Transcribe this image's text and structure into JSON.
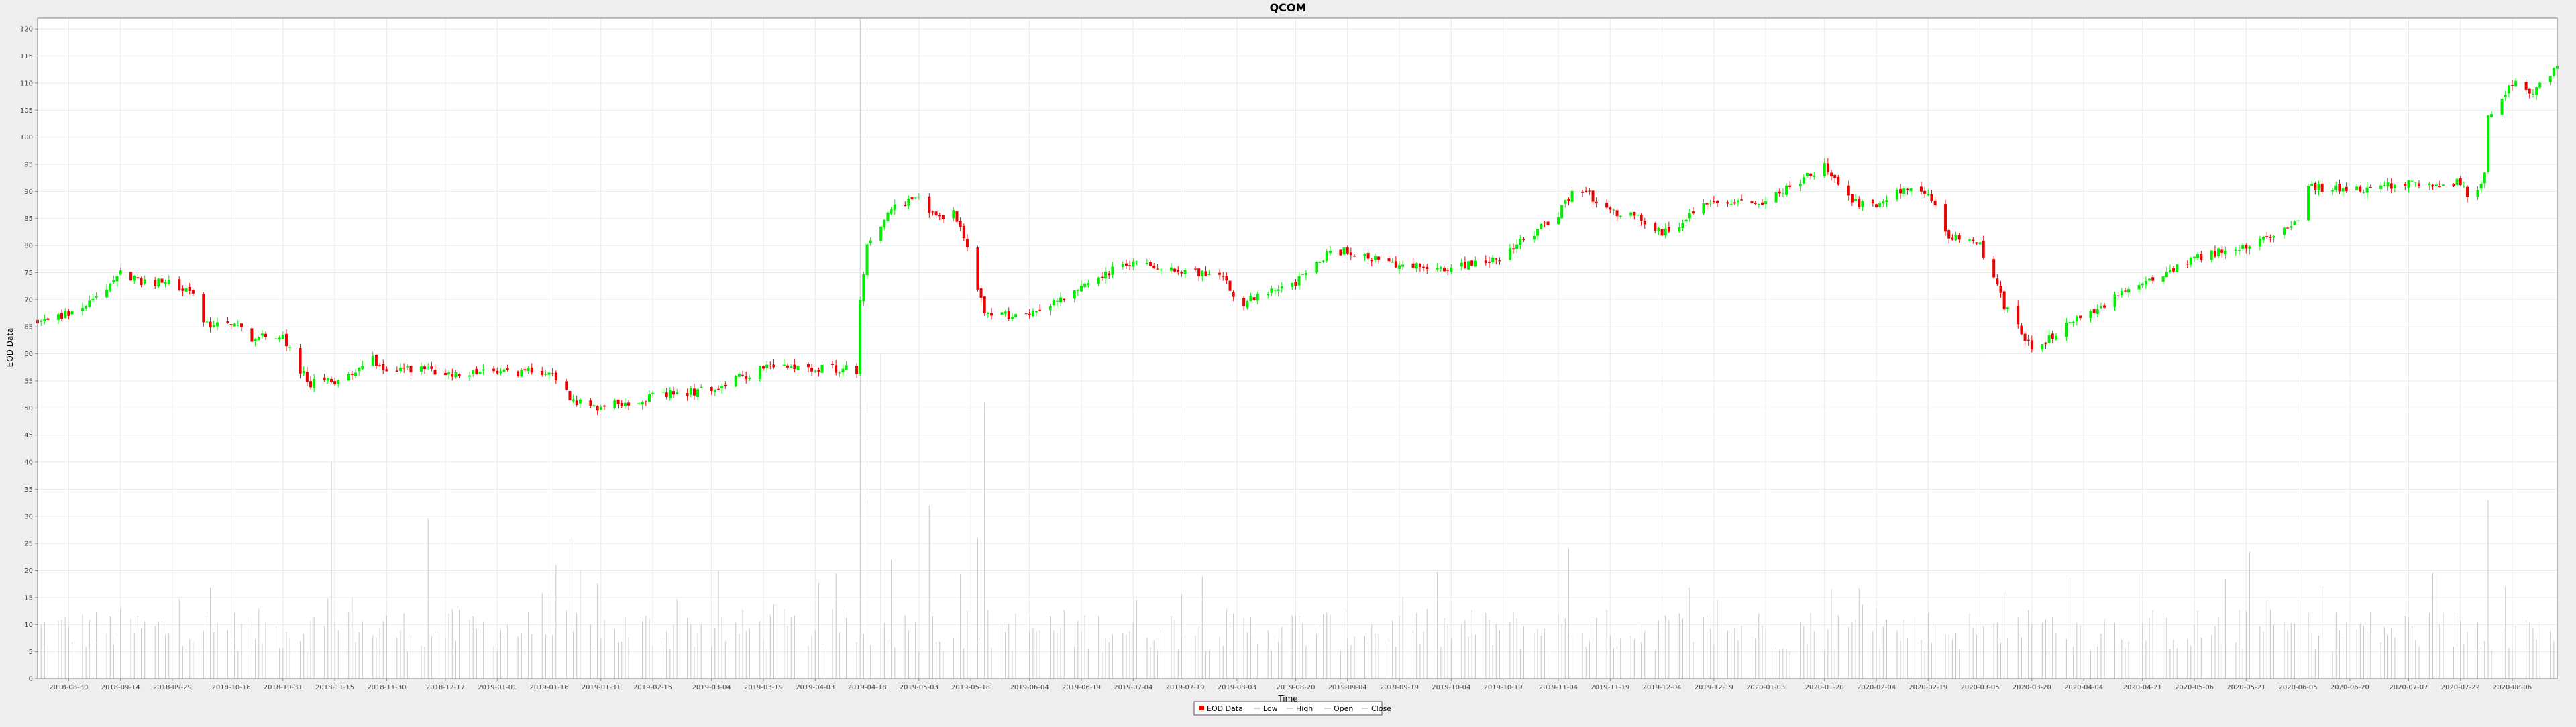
{
  "chart_data": {
    "type": "candlestick",
    "title": "QCOM",
    "xlabel": "Time",
    "ylabel": "EOD Data",
    "ylim": [
      0,
      122
    ],
    "y_ticks": [
      0,
      5,
      10,
      15,
      20,
      25,
      30,
      35,
      40,
      45,
      50,
      55,
      60,
      65,
      70,
      75,
      80,
      85,
      90,
      95,
      100,
      105,
      110,
      115,
      120
    ],
    "x_range": [
      "2018-08-21",
      "2020-08-19"
    ],
    "x_ticks": [
      "2018-08-30",
      "2018-09-14",
      "2018-09-29",
      "2018-10-16",
      "2018-10-31",
      "2018-11-15",
      "2018-11-30",
      "2018-12-17",
      "2019-01-01",
      "2019-01-16",
      "2019-01-31",
      "2019-02-15",
      "2019-03-04",
      "2019-03-19",
      "2019-04-03",
      "2019-04-18",
      "2019-05-03",
      "2019-05-18",
      "2019-06-04",
      "2019-06-19",
      "2019-07-04",
      "2019-07-19",
      "2019-08-03",
      "2019-08-20",
      "2019-09-04",
      "2019-09-19",
      "2019-10-04",
      "2019-10-19",
      "2019-11-04",
      "2019-11-19",
      "2019-12-04",
      "2019-12-19",
      "2020-01-03",
      "2020-01-20",
      "2020-02-04",
      "2020-02-19",
      "2020-03-05",
      "2020-03-20",
      "2020-04-04",
      "2020-04-21",
      "2020-05-06",
      "2020-05-21",
      "2020-06-05",
      "2020-06-20",
      "2020-07-07",
      "2020-07-22",
      "2020-08-06"
    ],
    "grid": true,
    "legend_position": "bottom-center",
    "legend": [
      "EOD Data",
      "Low",
      "High",
      "Open",
      "Close"
    ],
    "colors": {
      "up": "#00ee00",
      "down": "#ee0000",
      "volume": "#c8c8c8",
      "plot_bg": "#ffffff",
      "grid": "#eaeaea",
      "outline": "#808080"
    },
    "price_anchors": [
      [
        "2018-08-21",
        66.0
      ],
      [
        "2018-08-30",
        67.5
      ],
      [
        "2018-09-06",
        69.5
      ],
      [
        "2018-09-14",
        75.0
      ],
      [
        "2018-09-20",
        73.5
      ],
      [
        "2018-09-29",
        73.0
      ],
      [
        "2018-10-04",
        72.0
      ],
      [
        "2018-10-08",
        65.5
      ],
      [
        "2018-10-16",
        66.0
      ],
      [
        "2018-10-22",
        63.0
      ],
      [
        "2018-10-31",
        63.5
      ],
      [
        "2018-11-04",
        58.0
      ],
      [
        "2018-11-08",
        54.5
      ],
      [
        "2018-11-15",
        55.0
      ],
      [
        "2018-11-20",
        56.5
      ],
      [
        "2018-11-25",
        59.5
      ],
      [
        "2018-11-30",
        57.0
      ],
      [
        "2018-12-10",
        57.5
      ],
      [
        "2018-12-17",
        56.0
      ],
      [
        "2018-12-25",
        56.5
      ],
      [
        "2019-01-01",
        56.5
      ],
      [
        "2019-01-16",
        57.0
      ],
      [
        "2019-01-22",
        52.0
      ],
      [
        "2019-01-28",
        50.0
      ],
      [
        "2019-02-15",
        52.0
      ],
      [
        "2019-03-04",
        53.5
      ],
      [
        "2019-03-19",
        57.5
      ],
      [
        "2019-04-03",
        57.5
      ],
      [
        "2019-04-15",
        57.0
      ],
      [
        "2019-04-16",
        70.5
      ],
      [
        "2019-04-18",
        80.0
      ],
      [
        "2019-04-25",
        87.0
      ],
      [
        "2019-05-03",
        88.5
      ],
      [
        "2019-05-08",
        85.0
      ],
      [
        "2019-05-13",
        86.5
      ],
      [
        "2019-05-18",
        78.0
      ],
      [
        "2019-05-22",
        67.0
      ],
      [
        "2019-06-04",
        67.5
      ],
      [
        "2019-06-19",
        72.0
      ],
      [
        "2019-06-28",
        75.5
      ],
      [
        "2019-07-04",
        77.0
      ],
      [
        "2019-07-19",
        75.5
      ],
      [
        "2019-07-30",
        74.0
      ],
      [
        "2019-08-03",
        69.0
      ],
      [
        "2019-08-20",
        73.0
      ],
      [
        "2019-08-28",
        78.0
      ],
      [
        "2019-09-04",
        79.0
      ],
      [
        "2019-09-19",
        76.0
      ],
      [
        "2019-10-04",
        76.0
      ],
      [
        "2019-10-19",
        78.0
      ],
      [
        "2019-11-04",
        86.0
      ],
      [
        "2019-11-10",
        91.0
      ],
      [
        "2019-11-19",
        86.0
      ],
      [
        "2019-11-28",
        85.0
      ],
      [
        "2019-12-04",
        82.0
      ],
      [
        "2019-12-19",
        88.5
      ],
      [
        "2020-01-03",
        88.0
      ],
      [
        "2020-01-10",
        91.0
      ],
      [
        "2020-01-20",
        94.5
      ],
      [
        "2020-01-28",
        88.0
      ],
      [
        "2020-02-04",
        87.0
      ],
      [
        "2020-02-10",
        90.5
      ],
      [
        "2020-02-19",
        89.5
      ],
      [
        "2020-02-25",
        82.0
      ],
      [
        "2020-03-05",
        80.0
      ],
      [
        "2020-03-12",
        69.0
      ],
      [
        "2020-03-20",
        61.0
      ],
      [
        "2020-04-04",
        67.0
      ],
      [
        "2020-04-21",
        73.0
      ],
      [
        "2020-05-06",
        78.0
      ],
      [
        "2020-05-21",
        79.5
      ],
      [
        "2020-06-05",
        85.0
      ],
      [
        "2020-06-08",
        91.0
      ],
      [
        "2020-06-20",
        90.0
      ],
      [
        "2020-07-07",
        91.5
      ],
      [
        "2020-07-22",
        91.5
      ],
      [
        "2020-07-25",
        88.5
      ],
      [
        "2020-07-29",
        93.0
      ],
      [
        "2020-07-30",
        104.0
      ],
      [
        "2020-08-06",
        110.0
      ],
      [
        "2020-08-12",
        108.0
      ],
      [
        "2020-08-19",
        113.0
      ]
    ],
    "volume_spikes": [
      [
        "2018-11-10",
        24.5
      ],
      [
        "2018-11-14",
        40.0
      ],
      [
        "2018-11-20",
        15.0
      ],
      [
        "2018-12-12",
        29.5
      ],
      [
        "2019-01-18",
        21.0
      ],
      [
        "2019-01-22",
        26.0
      ],
      [
        "2019-01-25",
        20.0
      ],
      [
        "2019-04-16",
        122.0
      ],
      [
        "2019-04-18",
        33.0
      ],
      [
        "2019-04-22",
        60.0
      ],
      [
        "2019-04-25",
        22.0
      ],
      [
        "2019-05-06",
        32.0
      ],
      [
        "2019-05-20",
        26.0
      ],
      [
        "2019-05-22",
        51.0
      ],
      [
        "2019-07-05",
        14.5
      ],
      [
        "2019-11-07",
        24.0
      ],
      [
        "2020-01-22",
        16.5
      ],
      [
        "2020-03-12",
        16.0
      ],
      [
        "2020-05-22",
        23.5
      ],
      [
        "2020-06-05",
        14.5
      ],
      [
        "2020-07-30",
        33.0
      ],
      [
        "2020-08-04",
        17.0
      ]
    ]
  }
}
